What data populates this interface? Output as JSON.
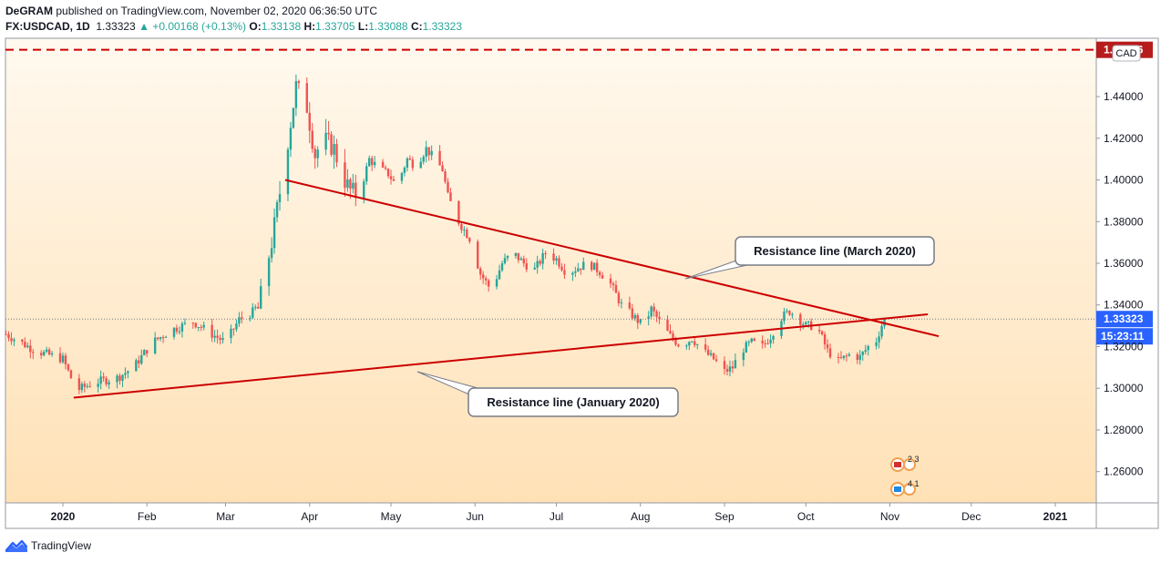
{
  "header": {
    "author": "DeGRAM",
    "published_text": "published on TradingView.com, November 02, 2020 06:36:50 UTC",
    "symbol": "FX:USDCAD, 1D",
    "last": "1.33323",
    "change": "+0.00168 (+0.13%)",
    "open_label": "O:",
    "open": "1.33138",
    "high_label": "H:",
    "high": "1.33705",
    "low_label": "L:",
    "low": "1.33088",
    "close_label": "C:",
    "close": "1.33323"
  },
  "footer": {
    "brand": "TradingView"
  },
  "colors": {
    "up": "#26a69a",
    "down": "#ef5350",
    "candle_up_fill": "#26a69a",
    "trend": "#cc0000",
    "accent": "#2962ff"
  },
  "chart_data": {
    "type": "candlestick",
    "currency": "CAD",
    "ylim": [
      1.245,
      1.468
    ],
    "y_ticks": [
      "1.26000",
      "1.28000",
      "1.30000",
      "1.32000",
      "1.34000",
      "1.36000",
      "1.38000",
      "1.40000",
      "1.42000",
      "1.44000"
    ],
    "x_ticks": [
      "2020",
      "Feb",
      "Mar",
      "Apr",
      "May",
      "Jun",
      "Jul",
      "Aug",
      "Sep",
      "Oct",
      "Nov",
      "Dec",
      "2021"
    ],
    "x_tick_days": [
      0,
      31,
      60,
      91,
      121,
      152,
      182,
      213,
      244,
      274,
      305,
      335,
      366
    ],
    "horizontal_level": {
      "value": 1.46246,
      "label": "1.46246",
      "style": "dashed"
    },
    "last_price": {
      "value": 1.33323,
      "label": "1.33323",
      "countdown": "15:23:11"
    },
    "trendlines": [
      {
        "name": "Resistance line (March 2020)",
        "start": {
          "day": 82,
          "price": 1.4
        },
        "end": {
          "day": 323,
          "price": 1.325
        }
      },
      {
        "name": "Resistance line (January 2020)",
        "start": {
          "day": 4,
          "price": 1.2955
        },
        "end": {
          "day": 319,
          "price": 1.3355
        }
      }
    ],
    "annotations": [
      {
        "text": "Resistance line (March 2020)"
      },
      {
        "text": "Resistance line (January 2020)"
      }
    ],
    "event_badges": [
      "2 3",
      "4 1"
    ],
    "price_path": [
      [
        -21,
        1.326
      ],
      [
        -10,
        1.318
      ],
      [
        0,
        1.314
      ],
      [
        5,
        1.299
      ],
      [
        12,
        1.303
      ],
      [
        20,
        1.305
      ],
      [
        26,
        1.31
      ],
      [
        33,
        1.322
      ],
      [
        40,
        1.328
      ],
      [
        48,
        1.332
      ],
      [
        55,
        1.326
      ],
      [
        60,
        1.322
      ],
      [
        65,
        1.333
      ],
      [
        72,
        1.338
      ],
      [
        77,
        1.37
      ],
      [
        82,
        1.41
      ],
      [
        86,
        1.445
      ],
      [
        90,
        1.435
      ],
      [
        93,
        1.412
      ],
      [
        96,
        1.42
      ],
      [
        100,
        1.415
      ],
      [
        103,
        1.402
      ],
      [
        106,
        1.395
      ],
      [
        109,
        1.392
      ],
      [
        113,
        1.41
      ],
      [
        117,
        1.405
      ],
      [
        120,
        1.403
      ],
      [
        123,
        1.397
      ],
      [
        127,
        1.41
      ],
      [
        130,
        1.407
      ],
      [
        134,
        1.415
      ],
      [
        137,
        1.41
      ],
      [
        140,
        1.405
      ],
      [
        142,
        1.392
      ],
      [
        146,
        1.38
      ],
      [
        150,
        1.372
      ],
      [
        154,
        1.355
      ],
      [
        158,
        1.347
      ],
      [
        162,
        1.36
      ],
      [
        166,
        1.365
      ],
      [
        170,
        1.36
      ],
      [
        174,
        1.357
      ],
      [
        178,
        1.365
      ],
      [
        182,
        1.362
      ],
      [
        186,
        1.355
      ],
      [
        190,
        1.358
      ],
      [
        194,
        1.36
      ],
      [
        198,
        1.356
      ],
      [
        202,
        1.35
      ],
      [
        206,
        1.34
      ],
      [
        210,
        1.335
      ],
      [
        214,
        1.33
      ],
      [
        217,
        1.338
      ],
      [
        220,
        1.332
      ],
      [
        224,
        1.325
      ],
      [
        228,
        1.32
      ],
      [
        232,
        1.324
      ],
      [
        236,
        1.318
      ],
      [
        240,
        1.314
      ],
      [
        244,
        1.308
      ],
      [
        247,
        1.31
      ],
      [
        250,
        1.318
      ],
      [
        254,
        1.322
      ],
      [
        258,
        1.32
      ],
      [
        261,
        1.325
      ],
      [
        265,
        1.334
      ],
      [
        268,
        1.337
      ],
      [
        271,
        1.334
      ],
      [
        274,
        1.33
      ],
      [
        278,
        1.33
      ],
      [
        282,
        1.318
      ],
      [
        286,
        1.313
      ],
      [
        290,
        1.316
      ],
      [
        294,
        1.315
      ],
      [
        297,
        1.32
      ],
      [
        300,
        1.323
      ],
      [
        303,
        1.334
      ]
    ]
  }
}
